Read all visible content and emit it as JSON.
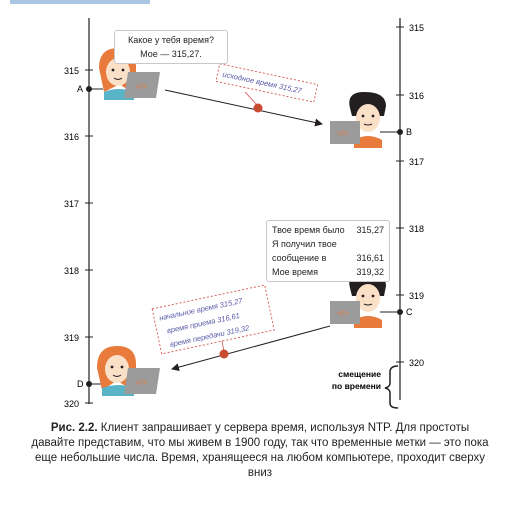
{
  "figure": {
    "left_ticks": [
      "315",
      "316",
      "317",
      "318",
      "319",
      "320"
    ],
    "right_ticks": [
      "315",
      "316",
      "317",
      "318",
      "319",
      "320"
    ],
    "events": {
      "a": "A",
      "b": "B",
      "c": "C",
      "d": "D"
    },
    "client_question": [
      "Какое у тебя время?",
      "Мое — 315,27."
    ],
    "request_packet": "исходное время 315,27",
    "server_reply": {
      "line1_label": "Твое время было",
      "line1_value": "315,27",
      "line2_label": "Я получил твое",
      "line3_label": "сообщение в",
      "line3_value": "316,61",
      "line4_label": "Мое время",
      "line4_value": "319,32"
    },
    "response_packet": [
      "начальное время 315,27",
      "время приема 316,61",
      "время передачи 319,32"
    ],
    "offset_label": [
      "смещение",
      "по времени"
    ]
  },
  "caption": {
    "label": "Рис. 2.2.",
    "text": " Клиент запрашивает у сервера время, используя NTP. Для простоты давайте представим, что мы живем в 1900 году, так что временные метки — это пока еще небольшие числа. Время, хранящееся на любом компьютере, проходит сверху вниз"
  },
  "colors": {
    "axis": "#231f20",
    "packet_border": "#d9534f",
    "packet_text": "#5a5aa8",
    "hair": "#e87a3c",
    "bubble_border": "#c8c8c8"
  }
}
